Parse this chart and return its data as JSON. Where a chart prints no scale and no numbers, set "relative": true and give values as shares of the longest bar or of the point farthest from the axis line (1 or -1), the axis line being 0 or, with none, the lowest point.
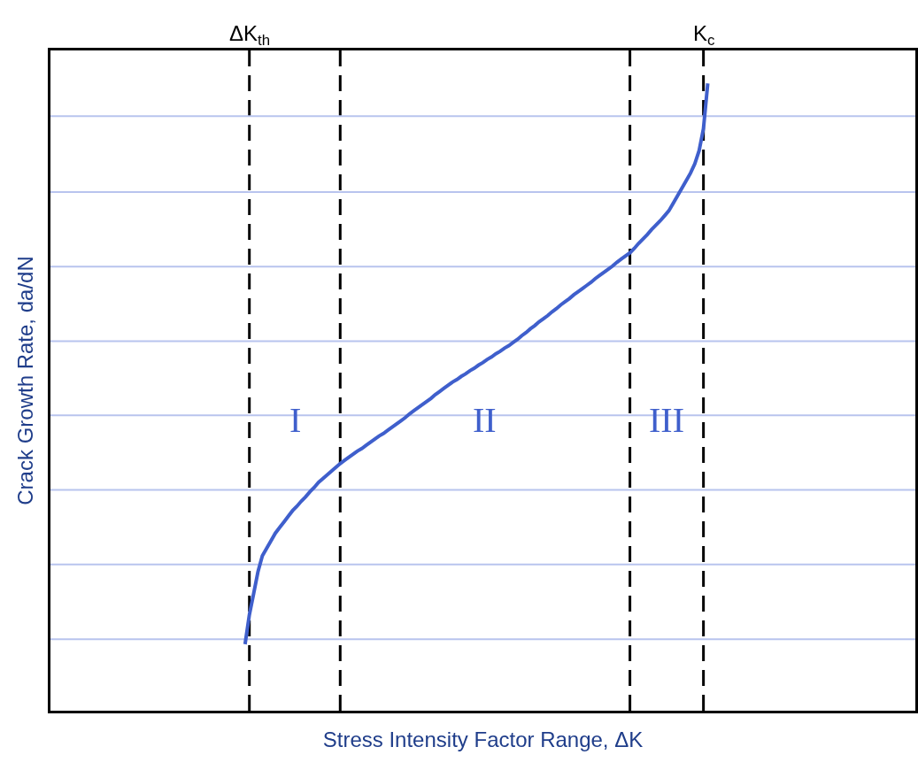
{
  "chart_data": {
    "type": "line",
    "relative": true,
    "xlabel": "Stress Intensity Factor Range, ΔK",
    "ylabel": "Crack Growth Rate, da/dN",
    "line_style": "solid",
    "categories": [
      null,
      null,
      null,
      null,
      null,
      null,
      null,
      null,
      null,
      null,
      null,
      null,
      null,
      null,
      null,
      null,
      null,
      null,
      null,
      null,
      null,
      null,
      null,
      null,
      null,
      null,
      null,
      null,
      null,
      null,
      null,
      null,
      null,
      null,
      null,
      null,
      null,
      null,
      null,
      null,
      null,
      null,
      null,
      null,
      null,
      null,
      null,
      null,
      null,
      null,
      null,
      null,
      null,
      null,
      null,
      null,
      null,
      null,
      null,
      null,
      null,
      null,
      null,
      null,
      null,
      null,
      null,
      null,
      null,
      null,
      null,
      null,
      null,
      null,
      null,
      null,
      null,
      null,
      null,
      null,
      null,
      null,
      null,
      null,
      null,
      null,
      null,
      null,
      null,
      null,
      null,
      null,
      null,
      null,
      null,
      null,
      null,
      null,
      null,
      null,
      null,
      null,
      null,
      null,
      null,
      null,
      null,
      null,
      null,
      null,
      null,
      null,
      null,
      null,
      null,
      null,
      null,
      null,
      null,
      null,
      null,
      null,
      null,
      null,
      null,
      null,
      null,
      null,
      null,
      null,
      null,
      null,
      null,
      null,
      null,
      null,
      null,
      null,
      null,
      null,
      null,
      null,
      null,
      null,
      null,
      null,
      null,
      null,
      null,
      null,
      null,
      null,
      null,
      null,
      null,
      null,
      null,
      null,
      null,
      null,
      null,
      null,
      null,
      null,
      null,
      null,
      null,
      null,
      null,
      null,
      null,
      null,
      null,
      null,
      null,
      null,
      null,
      null,
      null,
      null,
      null,
      null,
      null,
      null,
      null,
      null,
      null,
      null,
      null,
      null,
      null,
      null,
      null,
      null,
      null,
      null,
      null,
      null,
      null,
      null,
      null
    ],
    "series": [
      {
        "color": "#3f5fcc",
        "values": [
          null,
          null,
          null,
          null,
          null,
          null,
          null,
          null,
          null,
          null,
          null,
          null,
          null,
          null,
          null,
          null,
          null,
          null,
          null,
          null,
          null,
          null,
          null,
          null,
          null,
          null,
          null,
          null,
          null,
          null,
          null,
          null,
          null,
          null,
          null,
          null,
          null,
          null,
          null,
          null,
          null,
          null,
          null,
          null,
          null,
          0.106,
          0.153,
          0.187,
          0.222,
          0.247,
          0.259,
          0.271,
          0.283,
          0.292,
          0.301,
          0.31,
          0.319,
          0.326,
          0.334,
          0.341,
          0.349,
          0.356,
          0.364,
          0.37,
          0.376,
          0.382,
          0.388,
          0.394,
          0.399,
          0.404,
          0.409,
          0.414,
          0.418,
          0.423,
          0.428,
          0.433,
          0.438,
          0.442,
          0.447,
          0.452,
          0.457,
          0.462,
          0.467,
          0.473,
          0.478,
          0.483,
          0.488,
          0.493,
          0.498,
          0.504,
          0.509,
          0.514,
          0.519,
          0.524,
          0.528,
          0.533,
          0.537,
          0.542,
          0.546,
          0.551,
          0.555,
          0.56,
          0.564,
          0.569,
          0.573,
          0.578,
          0.582,
          0.587,
          0.592,
          0.598,
          0.603,
          0.609,
          0.614,
          0.62,
          0.625,
          0.63,
          0.636,
          0.641,
          0.647,
          0.652,
          0.657,
          0.663,
          0.668,
          0.673,
          0.678,
          0.683,
          0.689,
          0.694,
          0.699,
          0.704,
          0.709,
          0.715,
          0.72,
          0.725,
          0.73,
          0.737,
          0.745,
          0.752,
          0.759,
          0.767,
          0.774,
          0.781,
          0.789,
          0.797,
          0.809,
          0.821,
          0.833,
          0.845,
          0.857,
          0.872,
          0.893,
          0.928,
          1,
          null,
          null,
          null,
          null,
          null,
          null,
          null,
          null,
          null,
          null,
          null,
          null,
          null,
          null,
          null,
          null,
          null,
          null,
          null,
          null,
          null,
          null,
          null,
          null,
          null,
          null,
          null,
          null,
          null,
          null,
          null,
          null,
          null,
          null,
          null,
          null,
          null,
          null,
          null,
          null,
          null,
          null,
          null,
          null,
          null,
          null,
          null,
          null
        ]
      }
    ],
    "ref_lines": [
      {
        "axis": "y",
        "value": 0.948,
        "color": "#b8c4ee",
        "line_style": "solid"
      },
      {
        "axis": "y",
        "value": 0.827,
        "color": "#b8c4ee",
        "line_style": "solid"
      },
      {
        "axis": "y",
        "value": 0.708,
        "color": "#b8c4ee",
        "line_style": "solid"
      },
      {
        "axis": "y",
        "value": 0.589,
        "color": "#b8c4ee",
        "line_style": "solid"
      },
      {
        "axis": "y",
        "value": 0.471,
        "color": "#b8c4ee",
        "line_style": "solid"
      },
      {
        "axis": "y",
        "value": 0.352,
        "color": "#b8c4ee",
        "line_style": "solid"
      },
      {
        "axis": "y",
        "value": 0.233,
        "color": "#b8c4ee",
        "line_style": "solid"
      },
      {
        "axis": "y",
        "value": 0.114,
        "color": "#b8c4ee",
        "line_style": "solid"
      }
    ],
    "annotations": [
      "ΔK$_{th}$",
      "K$_{c}$",
      "I",
      "II",
      "III"
    ]
  }
}
